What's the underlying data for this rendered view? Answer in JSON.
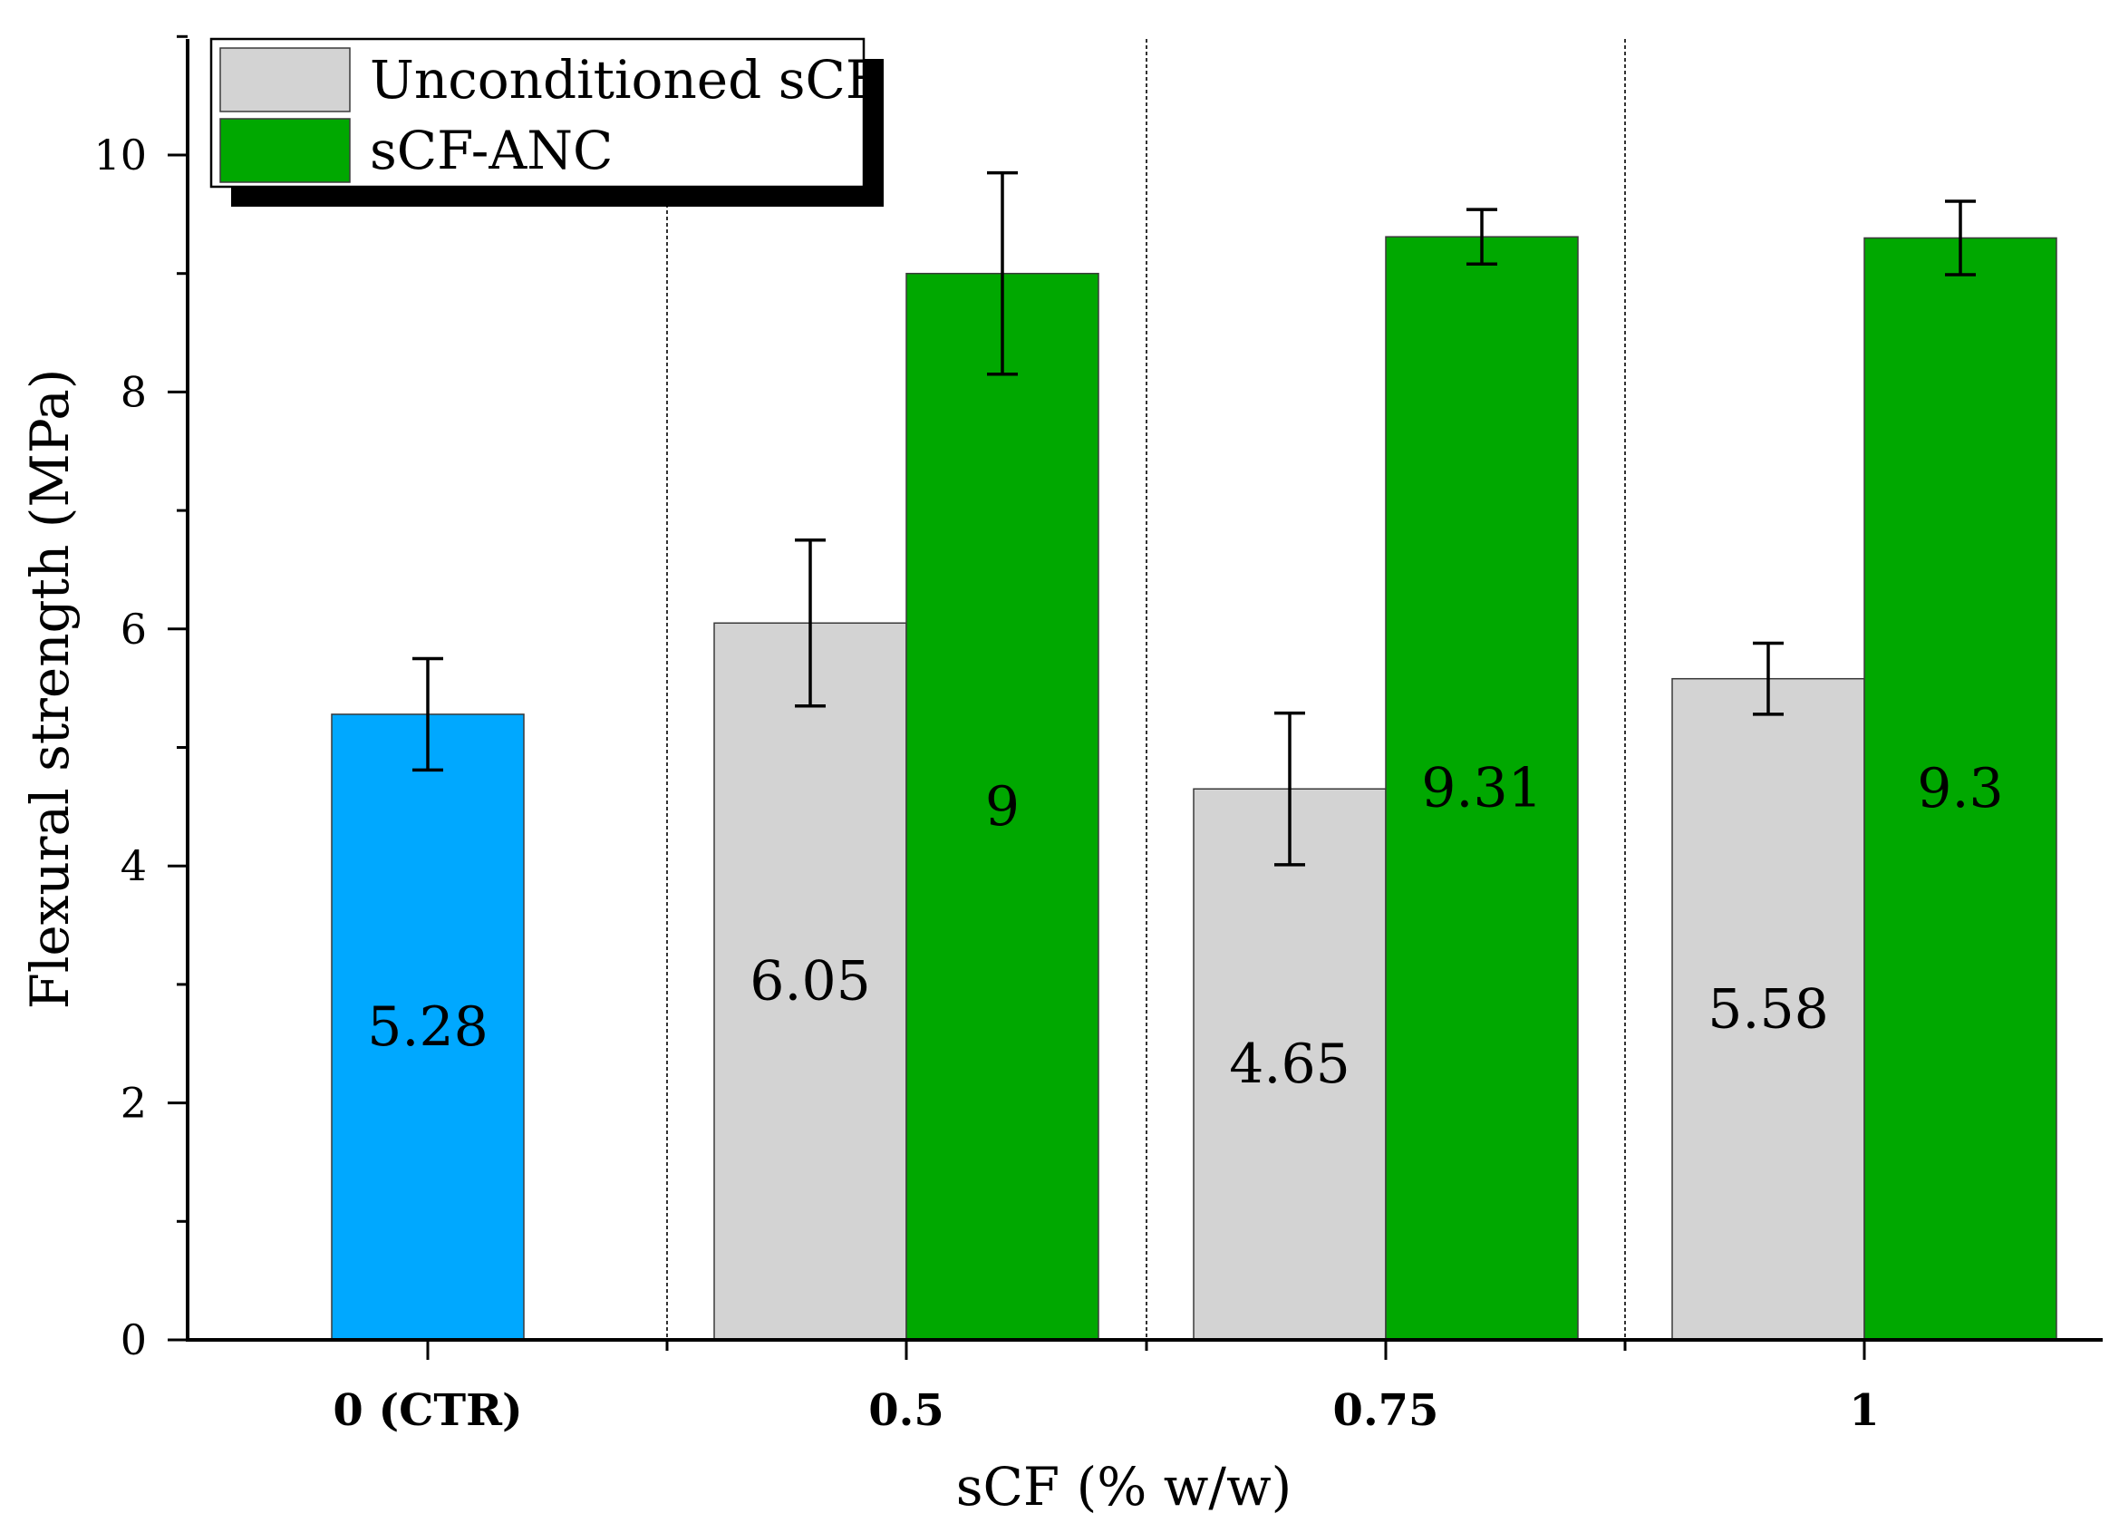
{
  "chart_data": {
    "type": "bar",
    "title": "",
    "xlabel": "sCF (% w/w)",
    "ylabel": "Flexural strength (MPa)",
    "ylim": [
      0,
      11
    ],
    "yticks": [
      0,
      2,
      4,
      6,
      8,
      10
    ],
    "grid": false,
    "legend_position": "top-left",
    "categories": [
      "0 (CTR)",
      "0.5",
      "0.75",
      "1"
    ],
    "control": {
      "name": "CTR",
      "category": "0 (CTR)",
      "value": 5.28,
      "error": 0.47,
      "label": "5.28",
      "color": "#00a8ff"
    },
    "series": [
      {
        "name": "Unconditioned sCF",
        "color": "#d3d3d3",
        "points": [
          {
            "category": "0.5",
            "value": 6.05,
            "error": 0.7,
            "label": "6.05"
          },
          {
            "category": "0.75",
            "value": 4.65,
            "error": 0.64,
            "label": "4.65"
          },
          {
            "category": "1",
            "value": 5.58,
            "error": 0.3,
            "label": "5.58"
          }
        ]
      },
      {
        "name": "sCF-ANC",
        "color": "#00a800",
        "points": [
          {
            "category": "0.5",
            "value": 9.0,
            "error": 0.85,
            "label": "9"
          },
          {
            "category": "0.75",
            "value": 9.31,
            "error": 0.23,
            "label": "9.31"
          },
          {
            "category": "1",
            "value": 9.3,
            "error": 0.31,
            "label": "9.3"
          }
        ]
      }
    ]
  }
}
